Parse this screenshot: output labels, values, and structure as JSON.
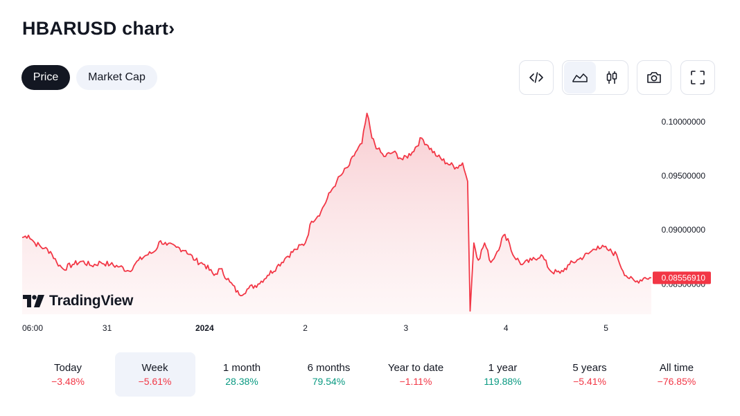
{
  "header": {
    "title": "HBARUSD chart",
    "title_chevron": "›"
  },
  "tabs": [
    {
      "label": "Price",
      "active": true
    },
    {
      "label": "Market Cap",
      "active": false
    }
  ],
  "toolbar": {
    "embed_icon": "code-icon",
    "area_icon": "area-chart-icon",
    "candles_icon": "candlestick-icon",
    "snapshot_icon": "camera-icon",
    "fullscreen_icon": "fullscreen-icon"
  },
  "watermark": {
    "text": "TradingView"
  },
  "colors": {
    "line": "#f23645",
    "fill_top": "#f7c6cb",
    "fill_bottom": "#fdeff0",
    "positive": "#089981",
    "negative": "#f23645",
    "dark": "#131722"
  },
  "chart_data": {
    "type": "area",
    "symbol": "HBARUSD",
    "x_ticks": [
      {
        "label": "06:00",
        "t": 0.0,
        "bold": false
      },
      {
        "label": "31",
        "t": 0.135,
        "bold": false
      },
      {
        "label": "2024",
        "t": 0.29,
        "bold": true
      },
      {
        "label": "2",
        "t": 0.45,
        "bold": false
      },
      {
        "label": "3",
        "t": 0.61,
        "bold": false
      },
      {
        "label": "4",
        "t": 0.769,
        "bold": false
      },
      {
        "label": "5",
        "t": 0.928,
        "bold": false
      }
    ],
    "y_ticks": [
      "0.10000000",
      "0.09500000",
      "0.09000000",
      "0.08500000"
    ],
    "y_tick_values": [
      0.1,
      0.095,
      0.09,
      0.085
    ],
    "ylim": [
      0.0822,
      0.1018
    ],
    "last_price_label": "0.08556910",
    "last_price": 0.08557,
    "series": [
      [
        0.0,
        0.0893
      ],
      [
        0.01,
        0.0895
      ],
      [
        0.02,
        0.0888
      ],
      [
        0.035,
        0.0883
      ],
      [
        0.045,
        0.088
      ],
      [
        0.055,
        0.087
      ],
      [
        0.065,
        0.0864
      ],
      [
        0.08,
        0.0868
      ],
      [
        0.095,
        0.0871
      ],
      [
        0.11,
        0.0867
      ],
      [
        0.125,
        0.087
      ],
      [
        0.14,
        0.0868
      ],
      [
        0.155,
        0.0866
      ],
      [
        0.17,
        0.0862
      ],
      [
        0.18,
        0.0869
      ],
      [
        0.195,
        0.0876
      ],
      [
        0.21,
        0.088
      ],
      [
        0.22,
        0.089
      ],
      [
        0.23,
        0.0886
      ],
      [
        0.245,
        0.0884
      ],
      [
        0.26,
        0.0881
      ],
      [
        0.275,
        0.0872
      ],
      [
        0.29,
        0.0868
      ],
      [
        0.305,
        0.0858
      ],
      [
        0.315,
        0.0864
      ],
      [
        0.33,
        0.0852
      ],
      [
        0.345,
        0.084
      ],
      [
        0.36,
        0.0846
      ],
      [
        0.375,
        0.085
      ],
      [
        0.39,
        0.0858
      ],
      [
        0.405,
        0.0866
      ],
      [
        0.42,
        0.0875
      ],
      [
        0.435,
        0.0882
      ],
      [
        0.45,
        0.0888
      ],
      [
        0.46,
        0.0908
      ],
      [
        0.475,
        0.0917
      ],
      [
        0.49,
        0.0935
      ],
      [
        0.5,
        0.0945
      ],
      [
        0.51,
        0.0953
      ],
      [
        0.52,
        0.096
      ],
      [
        0.53,
        0.0972
      ],
      [
        0.54,
        0.098
      ],
      [
        0.548,
        0.1008
      ],
      [
        0.556,
        0.0985
      ],
      [
        0.565,
        0.0975
      ],
      [
        0.575,
        0.0968
      ],
      [
        0.59,
        0.0972
      ],
      [
        0.605,
        0.0965
      ],
      [
        0.62,
        0.0972
      ],
      [
        0.635,
        0.0985
      ],
      [
        0.645,
        0.0978
      ],
      [
        0.66,
        0.0968
      ],
      [
        0.675,
        0.0962
      ],
      [
        0.69,
        0.0958
      ],
      [
        0.7,
        0.0962
      ],
      [
        0.708,
        0.0945
      ],
      [
        0.712,
        0.0825
      ],
      [
        0.718,
        0.0888
      ],
      [
        0.725,
        0.0872
      ],
      [
        0.735,
        0.0888
      ],
      [
        0.745,
        0.087
      ],
      [
        0.755,
        0.088
      ],
      [
        0.765,
        0.0895
      ],
      [
        0.772,
        0.0892
      ],
      [
        0.78,
        0.0877
      ],
      [
        0.795,
        0.0868
      ],
      [
        0.81,
        0.0872
      ],
      [
        0.825,
        0.0877
      ],
      [
        0.84,
        0.0862
      ],
      [
        0.855,
        0.086
      ],
      [
        0.87,
        0.0868
      ],
      [
        0.885,
        0.0873
      ],
      [
        0.9,
        0.0878
      ],
      [
        0.915,
        0.0885
      ],
      [
        0.93,
        0.0882
      ],
      [
        0.945,
        0.0877
      ],
      [
        0.955,
        0.0862
      ],
      [
        0.965,
        0.0855
      ],
      [
        0.975,
        0.0852
      ],
      [
        0.99,
        0.0856
      ],
      [
        1.0,
        0.08557
      ]
    ]
  },
  "periods": [
    {
      "label": "Today",
      "value": "−3.48%",
      "trend": "neg",
      "selected": false
    },
    {
      "label": "Week",
      "value": "−5.61%",
      "trend": "neg",
      "selected": true
    },
    {
      "label": "1 month",
      "value": "28.38%",
      "trend": "pos",
      "selected": false
    },
    {
      "label": "6 months",
      "value": "79.54%",
      "trend": "pos",
      "selected": false
    },
    {
      "label": "Year to date",
      "value": "−1.11%",
      "trend": "neg",
      "selected": false
    },
    {
      "label": "1 year",
      "value": "119.88%",
      "trend": "pos",
      "selected": false
    },
    {
      "label": "5 years",
      "value": "−5.41%",
      "trend": "neg",
      "selected": false
    },
    {
      "label": "All time",
      "value": "−76.85%",
      "trend": "neg",
      "selected": false
    }
  ]
}
